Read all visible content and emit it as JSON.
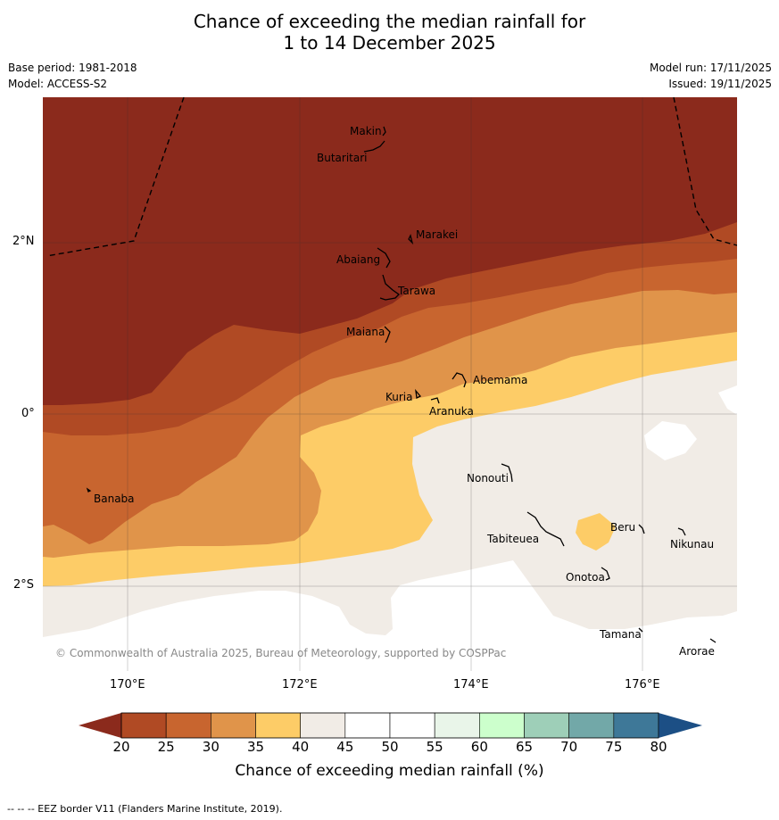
{
  "title": {
    "line1": "Chance of exceeding the median rainfall for",
    "line2": "1 to 14 December 2025"
  },
  "meta": {
    "base_period": "Base period: 1981-2018",
    "model": "Model: ACCESS-S2",
    "model_run": "Model run: 17/11/2025",
    "issued": "Issued: 19/11/2025"
  },
  "axes": {
    "latitudes": [
      "2°N",
      "0°",
      "2°S"
    ],
    "longitudes": [
      "170°E",
      "172°E",
      "174°E",
      "176°E"
    ]
  },
  "places": {
    "makin": "Makin",
    "butaritari": "Butaritari",
    "marakei": "Marakei",
    "abaiang": "Abaiang",
    "tarawa": "Tarawa",
    "maiana": "Maiana",
    "abemama": "Abemama",
    "kuria": "Kuria",
    "aranuka": "Aranuka",
    "nonouti": "Nonouti",
    "banaba": "Banaba",
    "beru": "Beru",
    "tabiteuea": "Tabiteuea",
    "nikunau": "Nikunau",
    "onotoa": "Onotoa",
    "tamana": "Tamana",
    "arorae": "Arorae"
  },
  "copyright": "© Commonwealth of Australia 2025, Bureau of Meteorology, supported by COSPPac",
  "colorbar": {
    "title": "Chance of exceeding median rainfall (%)",
    "ticks": [
      "20",
      "25",
      "30",
      "35",
      "40",
      "45",
      "50",
      "55",
      "60",
      "65",
      "70",
      "75",
      "80"
    ],
    "colors": [
      "#b04a24",
      "#c8652f",
      "#e0944a",
      "#fdcc67",
      "#f1ece6",
      "#ffffff",
      "#ffffff",
      "#e9f5e9",
      "#ccffcc",
      "#9ecfb8",
      "#72a8a8",
      "#3e7898"
    ],
    "low_color": "#8b2a1c",
    "high_color": "#1c4f85"
  },
  "footer": "-- -- -- EEZ border V11 (Flanders Marine Institute, 2019)."
}
